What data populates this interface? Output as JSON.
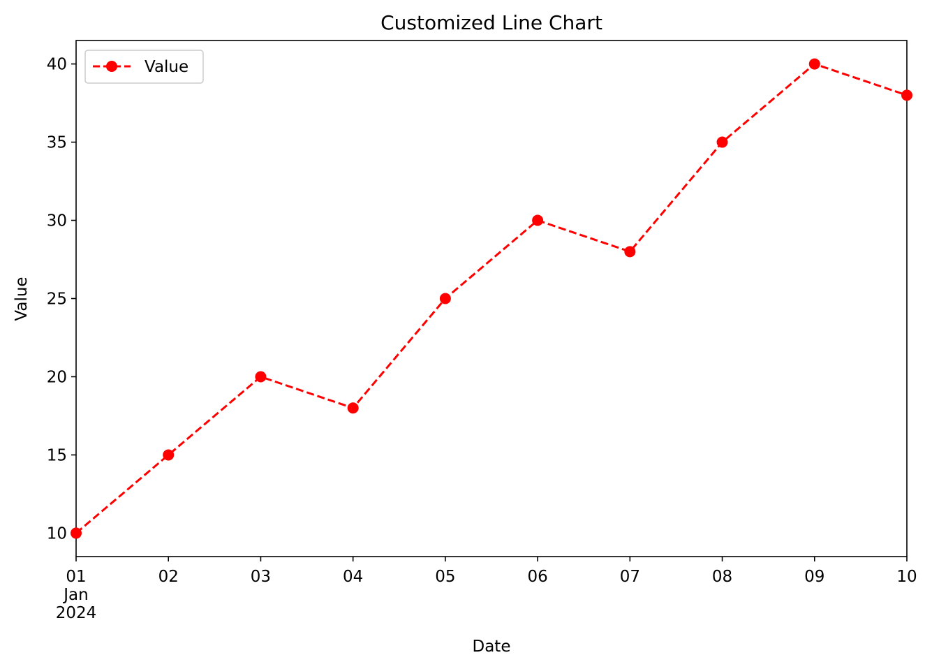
{
  "chart_data": {
    "type": "line",
    "title": "Customized Line Chart",
    "xlabel": "Date",
    "ylabel": "Value",
    "x": [
      "01",
      "02",
      "03",
      "04",
      "05",
      "06",
      "07",
      "08",
      "09",
      "10"
    ],
    "x_first_tick_extra": [
      "Jan",
      "2024"
    ],
    "y_ticks": [
      "10",
      "15",
      "20",
      "25",
      "30",
      "35",
      "40"
    ],
    "y_tick_values": [
      10,
      15,
      20,
      25,
      30,
      35,
      40
    ],
    "ylim": [
      8.5,
      41.5
    ],
    "series": [
      {
        "name": "Value",
        "values": [
          10,
          15,
          20,
          18,
          25,
          30,
          28,
          35,
          40,
          38
        ],
        "color": "#ff0000",
        "line_style": "dashed",
        "marker": "circle"
      }
    ],
    "legend": {
      "position": "top-left",
      "entries": [
        "Value"
      ]
    },
    "grid": false
  }
}
